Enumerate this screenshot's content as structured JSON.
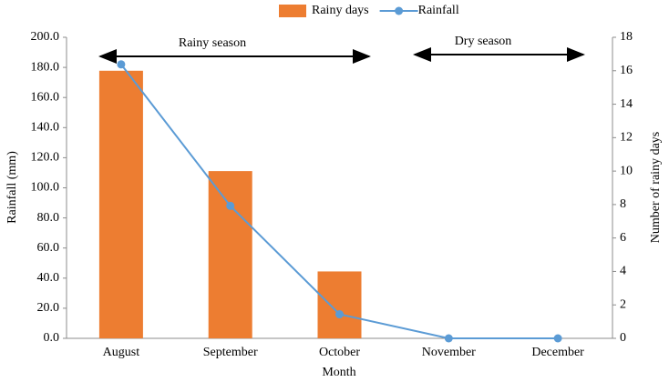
{
  "chart_data": {
    "type": "bar",
    "categories": [
      "August",
      "September",
      "October",
      "November",
      "December"
    ],
    "series": [
      {
        "name": "Rainy days",
        "type": "bar",
        "axis": "y2",
        "color": "#ed7d31",
        "values": [
          16,
          10,
          4,
          0,
          0
        ]
      },
      {
        "name": "Rainfall",
        "type": "line",
        "color": "#5b9bd5",
        "values": [
          182,
          88,
          16,
          0,
          0
        ]
      }
    ],
    "ylim": [
      0,
      200
    ],
    "yticks": [
      {
        "value": 0,
        "label": "0.0"
      },
      {
        "value": 20,
        "label": "20.0"
      },
      {
        "value": 40,
        "label": "40.0"
      },
      {
        "value": 60,
        "label": "60.0"
      },
      {
        "value": 80,
        "label": "80.0"
      },
      {
        "value": 100,
        "label": "100.0"
      },
      {
        "value": 120,
        "label": "120.0"
      },
      {
        "value": 140,
        "label": "140.0"
      },
      {
        "value": 160,
        "label": "160.0"
      },
      {
        "value": 180,
        "label": "180.0"
      },
      {
        "value": 200,
        "label": "200.0"
      }
    ],
    "y2lim": [
      0,
      18
    ],
    "y2ticks": [
      0,
      2,
      4,
      6,
      8,
      10,
      12,
      14,
      16,
      18
    ],
    "xlabel": "Month",
    "ylabel": "Rainfall (mm)",
    "y2label": "Number of rainy days",
    "annotations": [
      "Rainy season",
      "Dry season"
    ],
    "legend": "top",
    "grid": false
  }
}
